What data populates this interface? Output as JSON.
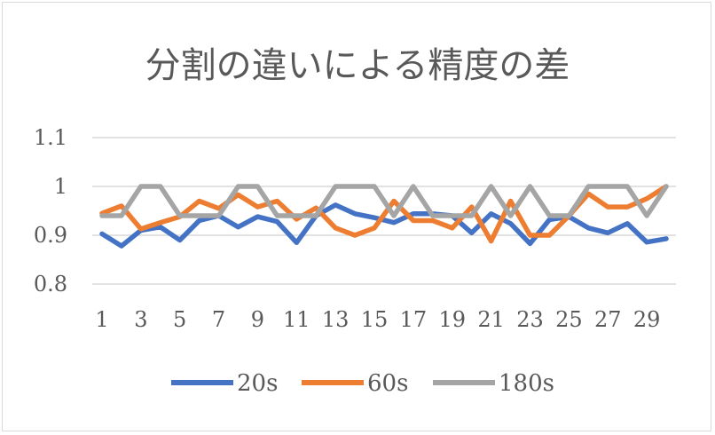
{
  "chart_data": {
    "type": "line",
    "title": "分割の違いによる精度の差",
    "xlabel": "",
    "ylabel": "",
    "x": [
      1,
      2,
      3,
      4,
      5,
      6,
      7,
      8,
      9,
      10,
      11,
      12,
      13,
      14,
      15,
      16,
      17,
      18,
      19,
      20,
      21,
      22,
      23,
      24,
      25,
      26,
      27,
      28,
      29,
      30
    ],
    "x_tick_labels": [
      "1",
      "3",
      "5",
      "7",
      "9",
      "11",
      "13",
      "15",
      "17",
      "19",
      "21",
      "23",
      "25",
      "27",
      "29"
    ],
    "ylim": [
      0.8,
      1.1
    ],
    "y_ticks": [
      "0.8",
      "0.9",
      "1",
      "1.1"
    ],
    "grid": true,
    "legend": "bottom",
    "series": [
      {
        "name": "20s",
        "color": "#4472C4",
        "values": [
          0.903,
          0.878,
          0.91,
          0.917,
          0.89,
          0.93,
          0.94,
          0.917,
          0.938,
          0.928,
          0.885,
          0.94,
          0.962,
          0.944,
          0.936,
          0.926,
          0.944,
          0.944,
          0.94,
          0.905,
          0.944,
          0.924,
          0.883,
          0.932,
          0.938,
          0.915,
          0.905,
          0.924,
          0.886,
          0.893
        ]
      },
      {
        "name": "60s",
        "color": "#ED7D31",
        "values": [
          0.945,
          0.96,
          0.913,
          0.926,
          0.938,
          0.97,
          0.955,
          0.983,
          0.958,
          0.97,
          0.933,
          0.956,
          0.915,
          0.9,
          0.915,
          0.97,
          0.93,
          0.93,
          0.915,
          0.958,
          0.888,
          0.97,
          0.9,
          0.9,
          0.94,
          0.985,
          0.958,
          0.958,
          0.975,
          1.0
        ]
      },
      {
        "name": "180s",
        "color": "#A5A5A5",
        "values": [
          0.94,
          0.94,
          1.0,
          1.0,
          0.94,
          0.94,
          0.94,
          1.0,
          1.0,
          0.94,
          0.94,
          0.94,
          1.0,
          1.0,
          1.0,
          0.94,
          1.0,
          0.94,
          0.94,
          0.94,
          1.0,
          0.94,
          1.0,
          0.94,
          0.94,
          1.0,
          1.0,
          1.0,
          0.94,
          1.0
        ]
      }
    ]
  }
}
